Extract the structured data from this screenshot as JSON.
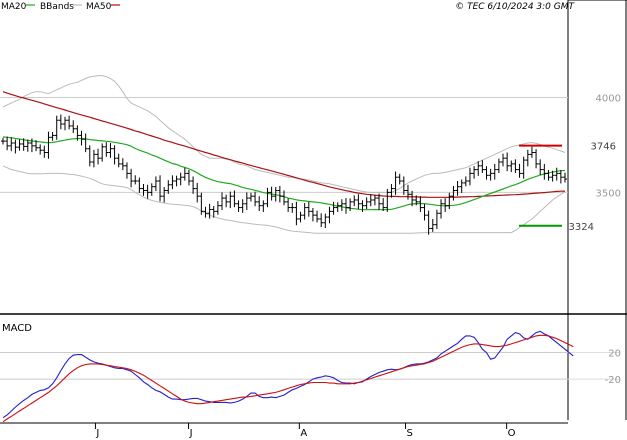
{
  "header": {
    "legend": [
      {
        "label": "MA20",
        "color": "#22aa22"
      },
      {
        "label": "BBands",
        "color": "#bbbbbb"
      },
      {
        "label": "MA50",
        "color": "#aa1111"
      }
    ],
    "copyright": "© TEC 6/10/2024 3:0 GMT"
  },
  "colors": {
    "ma20": "#22aa22",
    "bbands": "#bbbbbb",
    "ma50": "#aa1111",
    "price_bars": "#000000",
    "macd": "#2222cc",
    "signal": "#cc1111",
    "resistance": "#cc0000",
    "support": "#009900",
    "grid": "#cccccc"
  },
  "chart_data": [
    {
      "type": "ohlc",
      "name": "price",
      "x_labels": [
        "J",
        "J",
        "A",
        "S",
        "O"
      ],
      "y_ticks": [
        {
          "value": 4000,
          "label": "4000"
        },
        {
          "value": 3500,
          "label": "3500"
        }
      ],
      "ylim": [
        2870,
        4450
      ],
      "levels": [
        {
          "name": "resistance",
          "value": 3746,
          "label": "3746"
        },
        {
          "name": "support",
          "value": 3324,
          "label": "3324"
        }
      ],
      "closes": [
        3770,
        3745,
        3760,
        3738,
        3755,
        3742,
        3760,
        3745,
        3735,
        3722,
        3710,
        3790,
        3800,
        3880,
        3860,
        3880,
        3850,
        3835,
        3800,
        3780,
        3730,
        3660,
        3700,
        3680,
        3740,
        3710,
        3730,
        3680,
        3650,
        3640,
        3600,
        3560,
        3560,
        3520,
        3510,
        3500,
        3530,
        3560,
        3480,
        3510,
        3540,
        3560,
        3570,
        3580,
        3600,
        3560,
        3520,
        3480,
        3400,
        3390,
        3410,
        3400,
        3430,
        3470,
        3450,
        3480,
        3440,
        3420,
        3440,
        3470,
        3480,
        3450,
        3430,
        3440,
        3500,
        3480,
        3510,
        3480,
        3450,
        3420,
        3420,
        3360,
        3380,
        3420,
        3400,
        3380,
        3360,
        3340,
        3370,
        3400,
        3420,
        3430,
        3440,
        3420,
        3450,
        3460,
        3440,
        3430,
        3450,
        3460,
        3470,
        3440,
        3420,
        3500,
        3520,
        3580,
        3560,
        3510,
        3490,
        3460,
        3450,
        3420,
        3380,
        3310,
        3330,
        3390,
        3440,
        3430,
        3480,
        3510,
        3530,
        3550,
        3560,
        3600,
        3620,
        3640,
        3620,
        3590,
        3600,
        3620,
        3660,
        3680,
        3640,
        3650,
        3620,
        3600,
        3670,
        3700,
        3710,
        3650,
        3620,
        3600,
        3580,
        3590,
        3600,
        3580,
        3570
      ],
      "ma20": [
        3792,
        3790,
        3788,
        3784,
        3781,
        3777,
        3774,
        3771,
        3768,
        3766,
        3763,
        3761,
        3763,
        3767,
        3771,
        3775,
        3779,
        3782,
        3784,
        3784,
        3782,
        3778,
        3776,
        3773,
        3771,
        3769,
        3767,
        3764,
        3760,
        3756,
        3751,
        3743,
        3731,
        3722,
        3714,
        3707,
        3697,
        3690,
        3680,
        3670,
        3661,
        3652,
        3647,
        3638,
        3631,
        3624,
        3614,
        3603,
        3590,
        3579,
        3571,
        3563,
        3556,
        3553,
        3549,
        3546,
        3540,
        3533,
        3526,
        3521,
        3516,
        3511,
        3505,
        3499,
        3495,
        3491,
        3488,
        3483,
        3477,
        3470,
        3466,
        3461,
        3457,
        3455,
        3452,
        3450,
        3448,
        3445,
        3441,
        3437,
        3432,
        3428,
        3424,
        3420,
        3416,
        3414,
        3411,
        3409,
        3409,
        3409,
        3410,
        3409,
        3409,
        3410,
        3411,
        3416,
        3422,
        3428,
        3435,
        3439,
        3441,
        3441,
        3441,
        3438,
        3435,
        3432,
        3430,
        3429,
        3430,
        3432,
        3435,
        3440,
        3446,
        3454,
        3462,
        3470,
        3479,
        3487,
        3494,
        3502,
        3510,
        3518,
        3526,
        3534,
        3541,
        3549,
        3559,
        3569,
        3577,
        3584,
        3591,
        3597,
        3602,
        3607,
        3611,
        3614,
        3615
      ],
      "ma50": [
        4030,
        4023,
        4016,
        4009,
        4003,
        3997,
        3991,
        3985,
        3979,
        3973,
        3966,
        3959,
        3953,
        3946,
        3940,
        3934,
        3927,
        3920,
        3914,
        3908,
        3902,
        3896,
        3889,
        3883,
        3876,
        3870,
        3864,
        3858,
        3851,
        3845,
        3838,
        3831,
        3824,
        3818,
        3811,
        3804,
        3797,
        3790,
        3783,
        3775,
        3769,
        3763,
        3756,
        3750,
        3744,
        3737,
        3730,
        3723,
        3717,
        3710,
        3704,
        3697,
        3691,
        3684,
        3678,
        3672,
        3666,
        3660,
        3654,
        3648,
        3642,
        3636,
        3630,
        3624,
        3619,
        3613,
        3607,
        3601,
        3595,
        3589,
        3583,
        3577,
        3571,
        3564,
        3558,
        3553,
        3547,
        3541,
        3535,
        3529,
        3524,
        3519,
        3514,
        3509,
        3505,
        3500,
        3496,
        3493,
        3490,
        3488,
        3485,
        3483,
        3481,
        3480,
        3479,
        3479,
        3478,
        3477,
        3477,
        3476,
        3476,
        3475,
        3475,
        3474,
        3474,
        3474,
        3474,
        3474,
        3474,
        3475,
        3475,
        3476,
        3476,
        3477,
        3478,
        3479,
        3480,
        3481,
        3482,
        3483,
        3484,
        3485,
        3486,
        3487,
        3488,
        3489,
        3491,
        3492,
        3494,
        3496,
        3497,
        3499,
        3501,
        3503,
        3505,
        3506,
        3507
      ],
      "bb_upper": [
        3950,
        3960,
        3970,
        3980,
        3990,
        4005,
        4015,
        4025,
        4030,
        4030,
        4025,
        4020,
        4030,
        4040,
        4050,
        4060,
        4070,
        4075,
        4080,
        4090,
        4100,
        4108,
        4112,
        4115,
        4115,
        4110,
        4100,
        4085,
        4060,
        4030,
        3995,
        3970,
        3960,
        3950,
        3940,
        3930,
        3915,
        3900,
        3880,
        3860,
        3840,
        3825,
        3810,
        3795,
        3780,
        3760,
        3740,
        3720,
        3700,
        3690,
        3680,
        3680,
        3680,
        3680,
        3675,
        3670,
        3660,
        3650,
        3645,
        3640,
        3630,
        3620,
        3615,
        3610,
        3605,
        3600,
        3595,
        3590,
        3585,
        3580,
        3578,
        3575,
        3570,
        3570,
        3565,
        3560,
        3555,
        3550,
        3548,
        3545,
        3540,
        3535,
        3530,
        3525,
        3520,
        3515,
        3510,
        3505,
        3502,
        3500,
        3500,
        3500,
        3500,
        3500,
        3500,
        3510,
        3520,
        3535,
        3550,
        3560,
        3570,
        3580,
        3590,
        3595,
        3600,
        3600,
        3602,
        3605,
        3610,
        3615,
        3620,
        3625,
        3630,
        3640,
        3650,
        3660,
        3670,
        3680,
        3690,
        3700,
        3710,
        3720,
        3730,
        3740,
        3745,
        3750,
        3755,
        3760,
        3762,
        3758,
        3752,
        3745,
        3738,
        3732,
        3725,
        3718,
        3710
      ],
      "bb_lower": [
        3640,
        3630,
        3620,
        3615,
        3610,
        3605,
        3600,
        3598,
        3598,
        3598,
        3598,
        3600,
        3600,
        3600,
        3600,
        3598,
        3596,
        3594,
        3590,
        3586,
        3580,
        3574,
        3565,
        3555,
        3545,
        3540,
        3538,
        3535,
        3532,
        3530,
        3525,
        3515,
        3500,
        3488,
        3475,
        3465,
        3458,
        3452,
        3448,
        3444,
        3440,
        3438,
        3436,
        3434,
        3432,
        3430,
        3425,
        3415,
        3402,
        3390,
        3380,
        3372,
        3365,
        3360,
        3355,
        3352,
        3348,
        3344,
        3340,
        3338,
        3335,
        3332,
        3330,
        3328,
        3326,
        3322,
        3318,
        3312,
        3306,
        3300,
        3296,
        3294,
        3292,
        3290,
        3288,
        3286,
        3285,
        3285,
        3285,
        3285,
        3285,
        3285,
        3285,
        3285,
        3285,
        3285,
        3285,
        3285,
        3285,
        3285,
        3285,
        3285,
        3285,
        3285,
        3285,
        3285,
        3285,
        3285,
        3285,
        3285,
        3286,
        3287,
        3288,
        3288,
        3288,
        3288,
        3288,
        3288,
        3288,
        3288,
        3288,
        3288,
        3288,
        3288,
        3288,
        3288,
        3288,
        3288,
        3288,
        3288,
        3288,
        3288,
        3288,
        3288,
        3300,
        3315,
        3330,
        3345,
        3360,
        3380,
        3400,
        3420,
        3440,
        3460,
        3475,
        3490,
        3505
      ]
    },
    {
      "type": "line",
      "name": "MACD",
      "title": "MACD",
      "y_ticks": [
        {
          "value": 20,
          "label": "20"
        },
        {
          "value": -20,
          "label": "-20"
        }
      ],
      "ylim": [
        -86,
        72
      ],
      "series": [
        {
          "name": "MACD",
          "values": [
            -78,
            -74,
            -68,
            -62,
            -57,
            -52,
            -48,
            -43,
            -40,
            -37,
            -36,
            -33,
            -27,
            -18,
            -7,
            3,
            11,
            16,
            17,
            17,
            13,
            9,
            6,
            4,
            3,
            1,
            -1,
            -3,
            -4,
            -4,
            -6,
            -8,
            -13,
            -18,
            -24,
            -28,
            -33,
            -37,
            -39,
            -43,
            -47,
            -50,
            -50,
            -51,
            -51,
            -50,
            -49,
            -49,
            -51,
            -53,
            -54,
            -55,
            -55,
            -55,
            -55,
            -56,
            -55,
            -53,
            -50,
            -46,
            -41,
            -41,
            -46,
            -48,
            -48,
            -47,
            -48,
            -46,
            -44,
            -40,
            -36,
            -34,
            -31,
            -28,
            -24,
            -20,
            -18,
            -17,
            -15,
            -16,
            -18,
            -22,
            -25,
            -26,
            -26,
            -27,
            -25,
            -24,
            -20,
            -16,
            -13,
            -10,
            -8,
            -6,
            -5,
            -6,
            -5,
            -3,
            0,
            2,
            3,
            3,
            4,
            6,
            9,
            12,
            18,
            22,
            26,
            30,
            34,
            40,
            45,
            45,
            43,
            35,
            25,
            20,
            10,
            12,
            20,
            28,
            40,
            45,
            50,
            48,
            42,
            40,
            45,
            50,
            52,
            48,
            45,
            40,
            35,
            30,
            25,
            20,
            15
          ],
          "color": "#2222cc"
        },
        {
          "name": "Signal",
          "values": [
            -84,
            -80,
            -76,
            -72,
            -68,
            -64,
            -60,
            -56,
            -52,
            -48,
            -44,
            -40,
            -35,
            -30,
            -24,
            -18,
            -12,
            -7,
            -3,
            0,
            2,
            3,
            3,
            3,
            2,
            1,
            0,
            -1,
            -2,
            -3,
            -4,
            -6,
            -8,
            -11,
            -14,
            -18,
            -22,
            -26,
            -30,
            -34,
            -38,
            -42,
            -46,
            -50,
            -53,
            -55,
            -56,
            -57,
            -57,
            -56,
            -55,
            -54,
            -53,
            -52,
            -51,
            -50,
            -49,
            -48,
            -47,
            -47,
            -46,
            -45,
            -44,
            -43,
            -42,
            -41,
            -40,
            -38,
            -36,
            -34,
            -32,
            -30,
            -28,
            -27,
            -26,
            -25,
            -25,
            -25,
            -25,
            -26,
            -26,
            -27,
            -27,
            -27,
            -27,
            -26,
            -25,
            -23,
            -21,
            -19,
            -17,
            -15,
            -13,
            -11,
            -9,
            -7,
            -5,
            -3,
            -1,
            0,
            1,
            2,
            3,
            5,
            7,
            10,
            13,
            16,
            19,
            22,
            25,
            28,
            30,
            32,
            33,
            33,
            32,
            31,
            30,
            29,
            29,
            30,
            31,
            33,
            35,
            37,
            39,
            41,
            43,
            45,
            46,
            46,
            45,
            43,
            41,
            38,
            35,
            32,
            29
          ],
          "color": "#cc1111"
        }
      ],
      "x_labels": [
        "J",
        "J",
        "A",
        "S",
        "O"
      ]
    }
  ]
}
